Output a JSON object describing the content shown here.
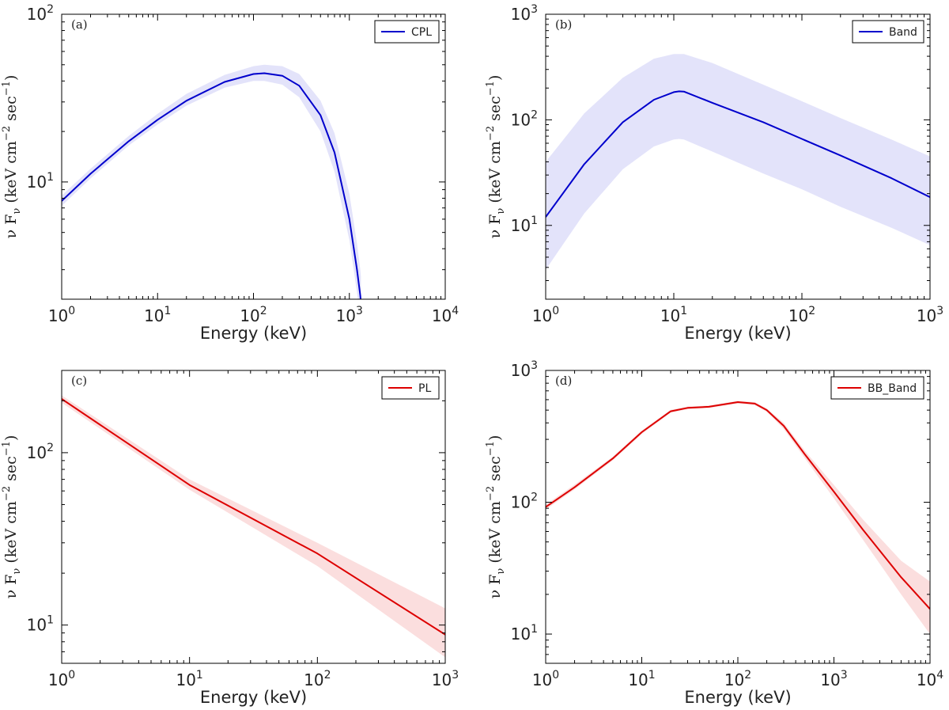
{
  "chart_data": [
    {
      "type": "line",
      "panel_tag": "(a)",
      "xlabel": "Energy (keV)",
      "ylabel": "ν F_ν (keV cm^-2 sec^-1)",
      "ylabel_parts": {
        "nu": "ν F",
        "sub": "ν",
        "unit": " (keV cm",
        "exp1": "−2",
        "mid": " sec",
        "exp2": "−1",
        "close": ")"
      },
      "xscale": "log",
      "yscale": "log",
      "xlim": [
        1,
        10000
      ],
      "ylim": [
        2,
        100
      ],
      "xticks": [
        {
          "base": "10",
          "exp": "0"
        },
        {
          "base": "10",
          "exp": "1"
        },
        {
          "base": "10",
          "exp": "2"
        },
        {
          "base": "10",
          "exp": "3"
        },
        {
          "base": "10",
          "exp": "4"
        }
      ],
      "yticks": [
        {
          "base": "10",
          "exp": "1"
        },
        {
          "base": "10",
          "exp": "2"
        }
      ],
      "legend": {
        "label": "CPL",
        "position": "upper-right"
      },
      "color": "#0000cc",
      "band_color": "#e3e3fa",
      "series": [
        {
          "name": "CPL",
          "x": [
            1,
            2,
            5,
            10,
            20,
            50,
            100,
            130,
            200,
            300,
            500,
            700,
            1000,
            1200,
            1300,
            1320
          ],
          "y": [
            7.7,
            11.2,
            17.5,
            23.5,
            30.5,
            39.5,
            44.0,
            44.5,
            43.0,
            37.5,
            25.0,
            15.0,
            6.0,
            3.0,
            2.1,
            1.9
          ],
          "lower": [
            7.2,
            10.5,
            16.5,
            22.0,
            28.5,
            36.5,
            40.0,
            40.0,
            38.0,
            32.0,
            20.0,
            11.5,
            4.5,
            2.2,
            1.5,
            1.4
          ],
          "upper": [
            8.3,
            12.0,
            18.8,
            25.5,
            33.5,
            43.5,
            49.0,
            50.0,
            49.0,
            44.0,
            30.5,
            19.5,
            8.5,
            4.3,
            3.0,
            2.7
          ]
        }
      ]
    },
    {
      "type": "line",
      "panel_tag": "(b)",
      "xlabel": "Energy (keV)",
      "ylabel": "ν F_ν (keV cm^-2 sec^-1)",
      "ylabel_parts": {
        "nu": "ν F",
        "sub": "ν",
        "unit": " (keV cm",
        "exp1": "−2",
        "mid": " sec",
        "exp2": "−1",
        "close": ")"
      },
      "xscale": "log",
      "yscale": "log",
      "xlim": [
        1,
        1000
      ],
      "ylim": [
        2,
        1000
      ],
      "xticks": [
        {
          "base": "10",
          "exp": "0"
        },
        {
          "base": "10",
          "exp": "1"
        },
        {
          "base": "10",
          "exp": "2"
        },
        {
          "base": "10",
          "exp": "3"
        }
      ],
      "yticks": [
        {
          "base": "10",
          "exp": "1"
        },
        {
          "base": "10",
          "exp": "2"
        },
        {
          "base": "10",
          "exp": "3"
        }
      ],
      "legend": {
        "label": "Band",
        "position": "upper-right"
      },
      "color": "#0000cc",
      "band_color": "#e3e3fa",
      "series": [
        {
          "name": "Band",
          "x": [
            1,
            2,
            4,
            7,
            10,
            11,
            12,
            20,
            50,
            100,
            200,
            500,
            1000
          ],
          "y": [
            12,
            38,
            95,
            155,
            183,
            186,
            185,
            145,
            95,
            66,
            46,
            28,
            18.5
          ],
          "lower": [
            3.8,
            13,
            34,
            56,
            65,
            66,
            65,
            50,
            31,
            22,
            15,
            9.5,
            6.5
          ],
          "upper": [
            40,
            115,
            250,
            380,
            420,
            420,
            420,
            345,
            215,
            150,
            104,
            65,
            45
          ]
        }
      ]
    },
    {
      "type": "line",
      "panel_tag": "(c)",
      "xlabel": "Energy (keV)",
      "ylabel": "ν F_ν (keV cm^-2 sec^-1)",
      "ylabel_parts": {
        "nu": "ν F",
        "sub": "ν",
        "unit": " (keV cm",
        "exp1": "−2",
        "mid": " sec",
        "exp2": "−1",
        "close": ")"
      },
      "xscale": "log",
      "yscale": "log",
      "xlim": [
        1,
        1000
      ],
      "ylim": [
        6,
        300
      ],
      "xticks": [
        {
          "base": "10",
          "exp": "0"
        },
        {
          "base": "10",
          "exp": "1"
        },
        {
          "base": "10",
          "exp": "2"
        },
        {
          "base": "10",
          "exp": "3"
        }
      ],
      "yticks": [
        {
          "base": "10",
          "exp": "1"
        },
        {
          "base": "10",
          "exp": "2"
        }
      ],
      "legend": {
        "label": "PL",
        "position": "upper-right"
      },
      "color": "#dd0000",
      "band_color": "#fbdede",
      "series": [
        {
          "name": "PL",
          "x": [
            1,
            10,
            100,
            1000
          ],
          "y": [
            205,
            65,
            26,
            8.8
          ],
          "lower": [
            195,
            61,
            22,
            6.5
          ],
          "upper": [
            215,
            70,
            30,
            12.5
          ]
        }
      ]
    },
    {
      "type": "line",
      "panel_tag": "(d)",
      "xlabel": "Energy (keV)",
      "ylabel": "ν F_ν (keV cm^-2 sec^-1)",
      "ylabel_parts": {
        "nu": "ν F",
        "sub": "ν",
        "unit": " (keV cm",
        "exp1": "−2",
        "mid": " sec",
        "exp2": "−1",
        "close": ")"
      },
      "xscale": "log",
      "yscale": "log",
      "xlim": [
        1,
        10000
      ],
      "ylim": [
        6,
        1000
      ],
      "xticks": [
        {
          "base": "10",
          "exp": "0"
        },
        {
          "base": "10",
          "exp": "1"
        },
        {
          "base": "10",
          "exp": "2"
        },
        {
          "base": "10",
          "exp": "3"
        },
        {
          "base": "10",
          "exp": "4"
        }
      ],
      "yticks": [
        {
          "base": "10",
          "exp": "1"
        },
        {
          "base": "10",
          "exp": "2"
        },
        {
          "base": "10",
          "exp": "3"
        }
      ],
      "legend": {
        "label": "BB_Band",
        "position": "upper-right"
      },
      "color": "#dd0000",
      "band_color": "#fbdede",
      "series": [
        {
          "name": "BB_Band",
          "x": [
            1,
            2,
            5,
            10,
            20,
            30,
            50,
            100,
            150,
            200,
            300,
            500,
            1000,
            2000,
            5000,
            10000
          ],
          "y": [
            92,
            130,
            215,
            340,
            490,
            520,
            530,
            575,
            560,
            500,
            380,
            230,
            120,
            62,
            27,
            15.5
          ],
          "lower": [
            88,
            125,
            208,
            330,
            478,
            508,
            518,
            562,
            545,
            485,
            360,
            215,
            107,
            52,
            20,
            10
          ],
          "upper": [
            96,
            136,
            222,
            350,
            502,
            532,
            542,
            588,
            575,
            515,
            400,
            245,
            135,
            74,
            36,
            25
          ]
        }
      ]
    }
  ]
}
